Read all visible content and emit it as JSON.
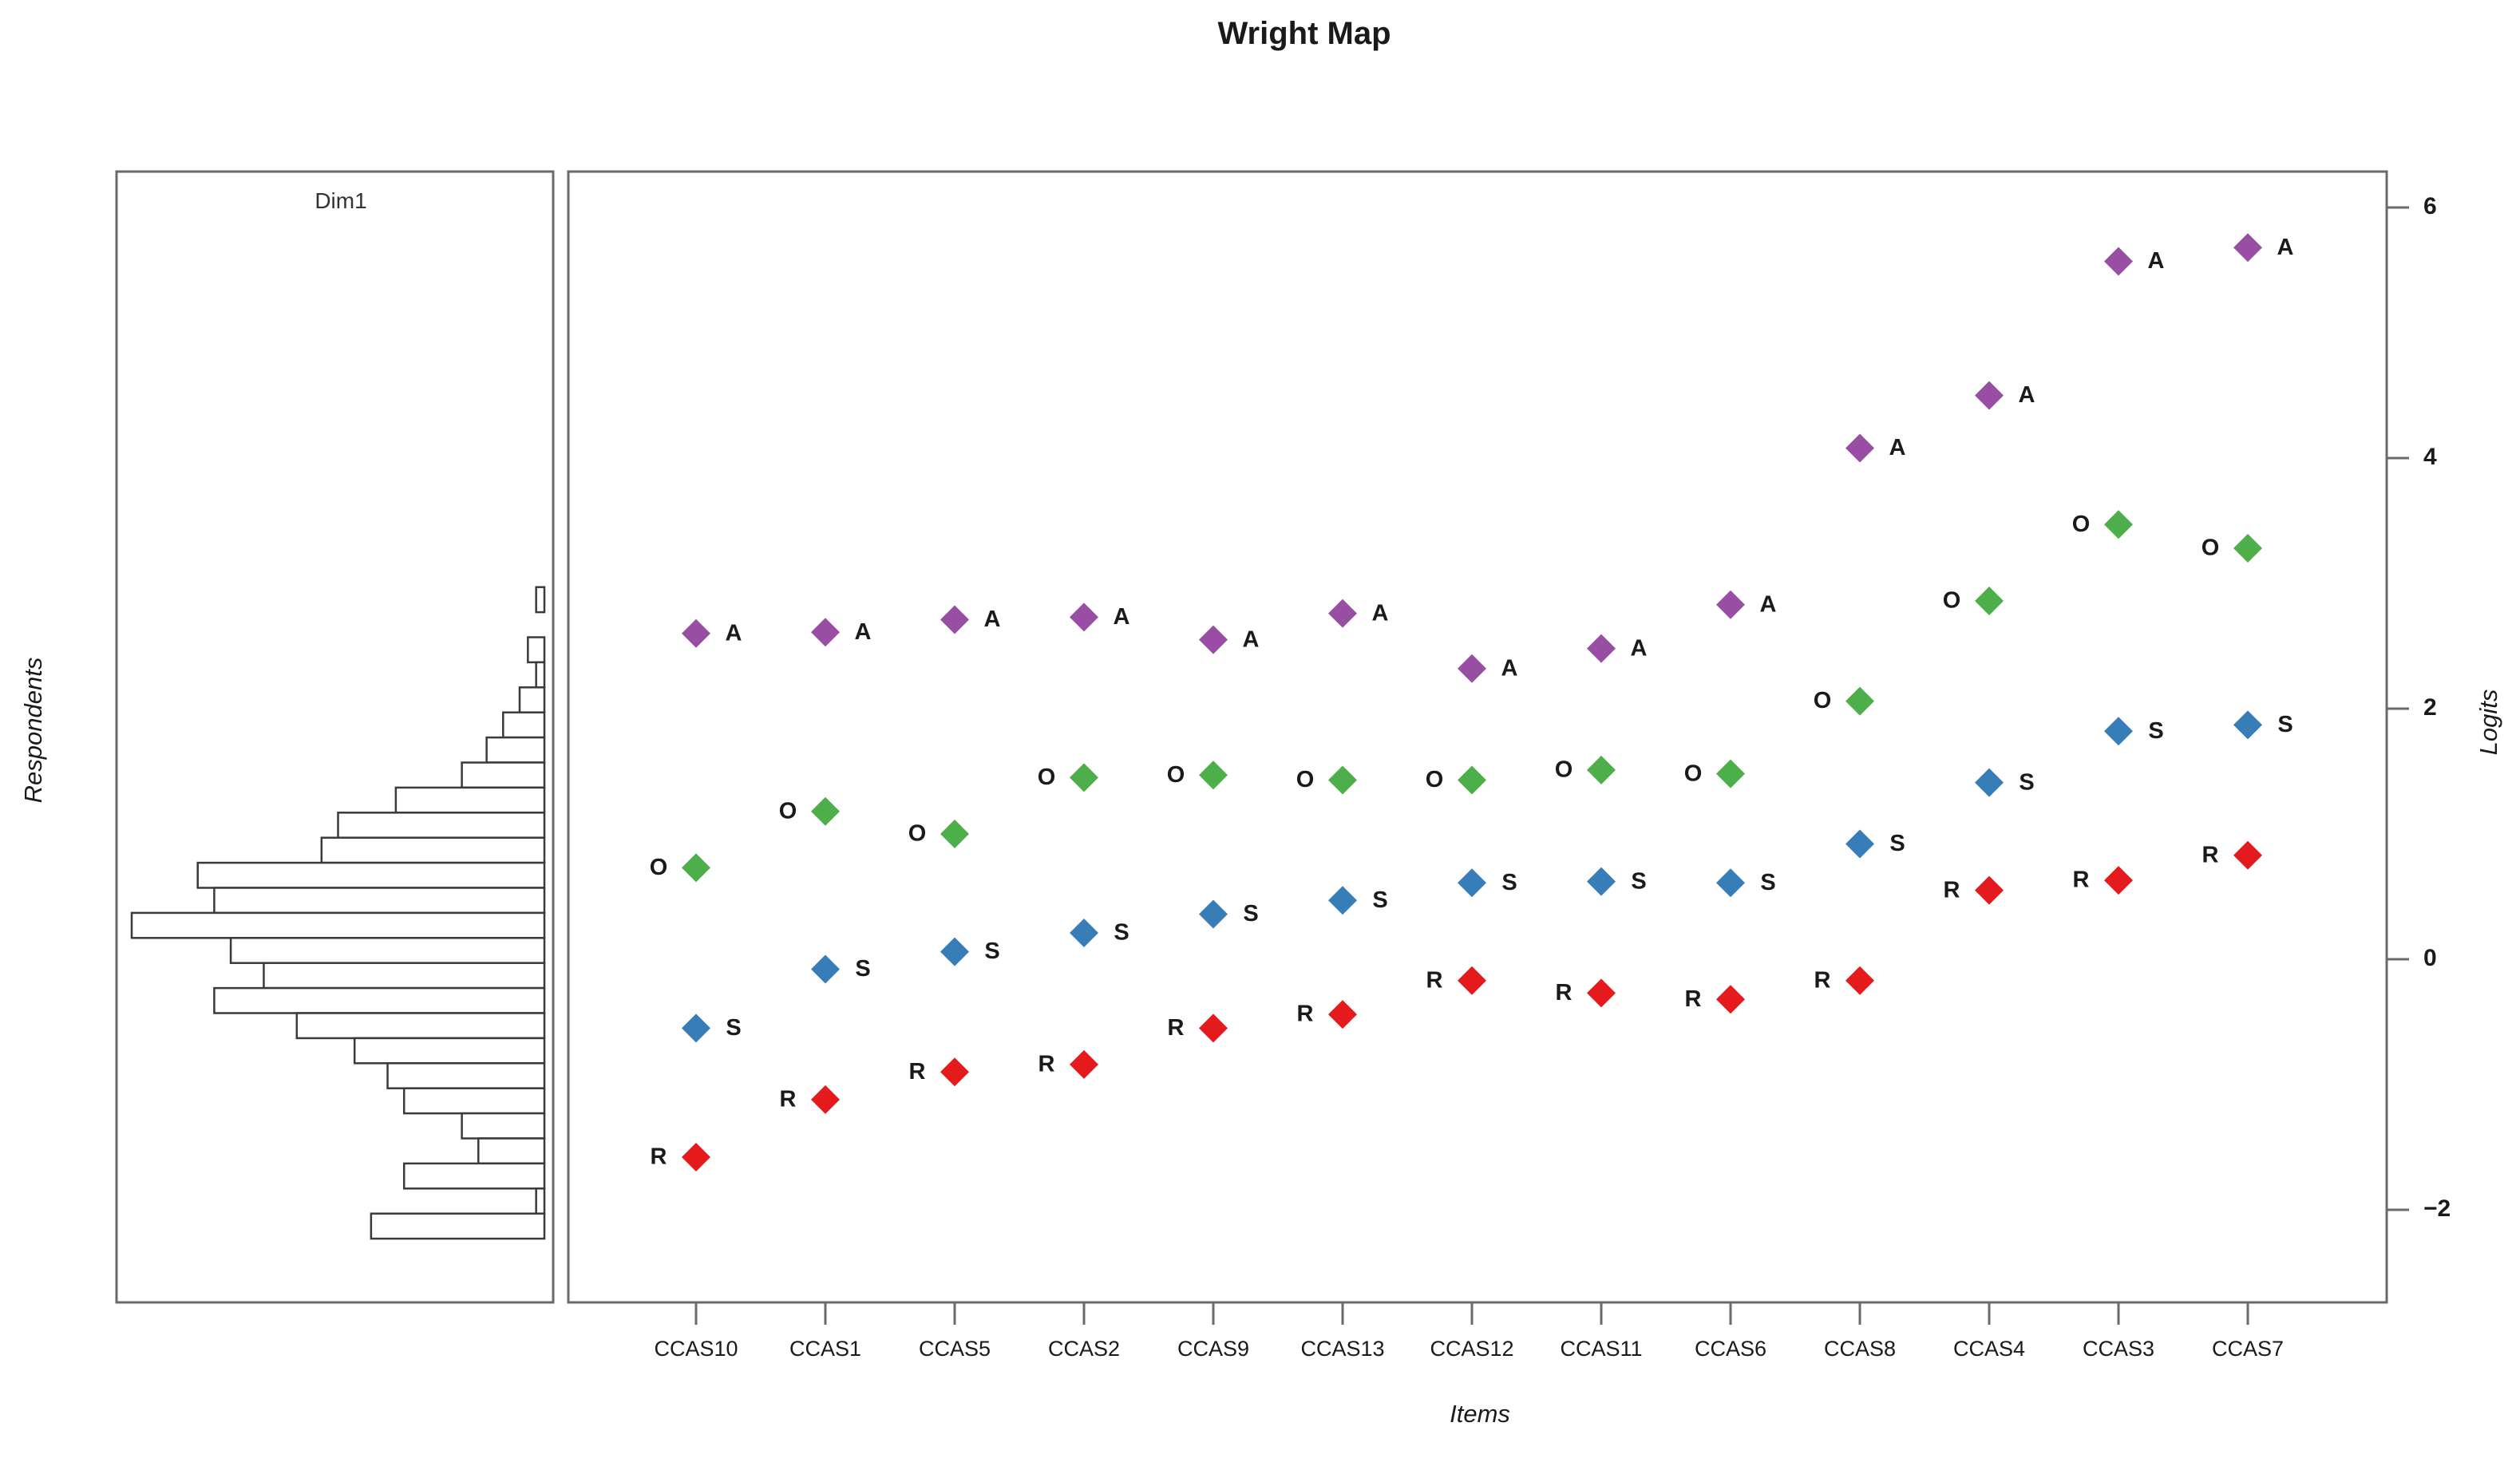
{
  "title": "Wright Map",
  "left_panel": {
    "title": "Dim1",
    "axis_label": "Respondents"
  },
  "right_axis": {
    "label": "Logits"
  },
  "x_axis": {
    "label": "Items"
  },
  "colors": {
    "agree": "#984EA3",
    "often": "#4DAF4A",
    "sometimes": "#377EB8",
    "rarely": "#E41A1C",
    "panel_border": "#6a6a6a",
    "bar_stroke": "#3a3a3a",
    "text": "#1a1a1a"
  },
  "chart_data": [
    {
      "type": "bar",
      "title": "Dim1",
      "orientation": "horizontal-left",
      "axis_label": "Respondents",
      "bin_top_logit": 2.97,
      "bin_size_logit": 0.2,
      "max_count": 50,
      "counts": [
        1,
        0,
        2,
        1,
        3,
        5,
        7,
        10,
        18,
        25,
        27,
        42,
        40,
        50,
        38,
        34,
        40,
        30,
        23,
        19,
        17,
        10,
        8,
        17,
        1,
        21
      ],
      "note": "Respondent ability distribution; bars extend leftward from panel's inner right edge, sharing the Logits scale of the main panel"
    },
    {
      "type": "scatter",
      "xlabel": "Items",
      "ylabel": "Logits",
      "marker": "diamond",
      "categories": [
        "CCAS10",
        "CCAS1",
        "CCAS5",
        "CCAS2",
        "CCAS9",
        "CCAS13",
        "CCAS12",
        "CCAS11",
        "CCAS6",
        "CCAS8",
        "CCAS4",
        "CCAS3",
        "CCAS7"
      ],
      "ytick_labels": [
        "6",
        "4",
        "2",
        "0",
        "−2"
      ],
      "ytick_values": [
        6,
        4,
        2,
        0,
        -2
      ],
      "ylim": [
        -2.74,
        6.3
      ],
      "legend_position": "none",
      "grid": false,
      "series": [
        {
          "name": "R",
          "color": "#E41A1C",
          "label_side": "left",
          "values": [
            -1.58,
            -1.12,
            -0.9,
            -0.84,
            -0.55,
            -0.44,
            -0.17,
            -0.27,
            -0.32,
            -0.17,
            0.55,
            0.63,
            0.83
          ]
        },
        {
          "name": "S",
          "color": "#377EB8",
          "label_side": "right",
          "values": [
            -0.55,
            -0.08,
            0.06,
            0.21,
            0.36,
            0.47,
            0.61,
            0.62,
            0.61,
            0.92,
            1.41,
            1.82,
            1.87
          ]
        },
        {
          "name": "O",
          "color": "#4DAF4A",
          "label_side": "left",
          "values": [
            0.73,
            1.18,
            1.0,
            1.45,
            1.47,
            1.43,
            1.43,
            1.51,
            1.48,
            2.06,
            2.86,
            3.47,
            3.28
          ]
        },
        {
          "name": "A",
          "color": "#984EA3",
          "label_side": "right",
          "values": [
            2.6,
            2.61,
            2.71,
            2.73,
            2.55,
            2.76,
            2.32,
            2.48,
            2.83,
            4.08,
            4.5,
            5.57,
            5.68
          ]
        }
      ]
    }
  ]
}
